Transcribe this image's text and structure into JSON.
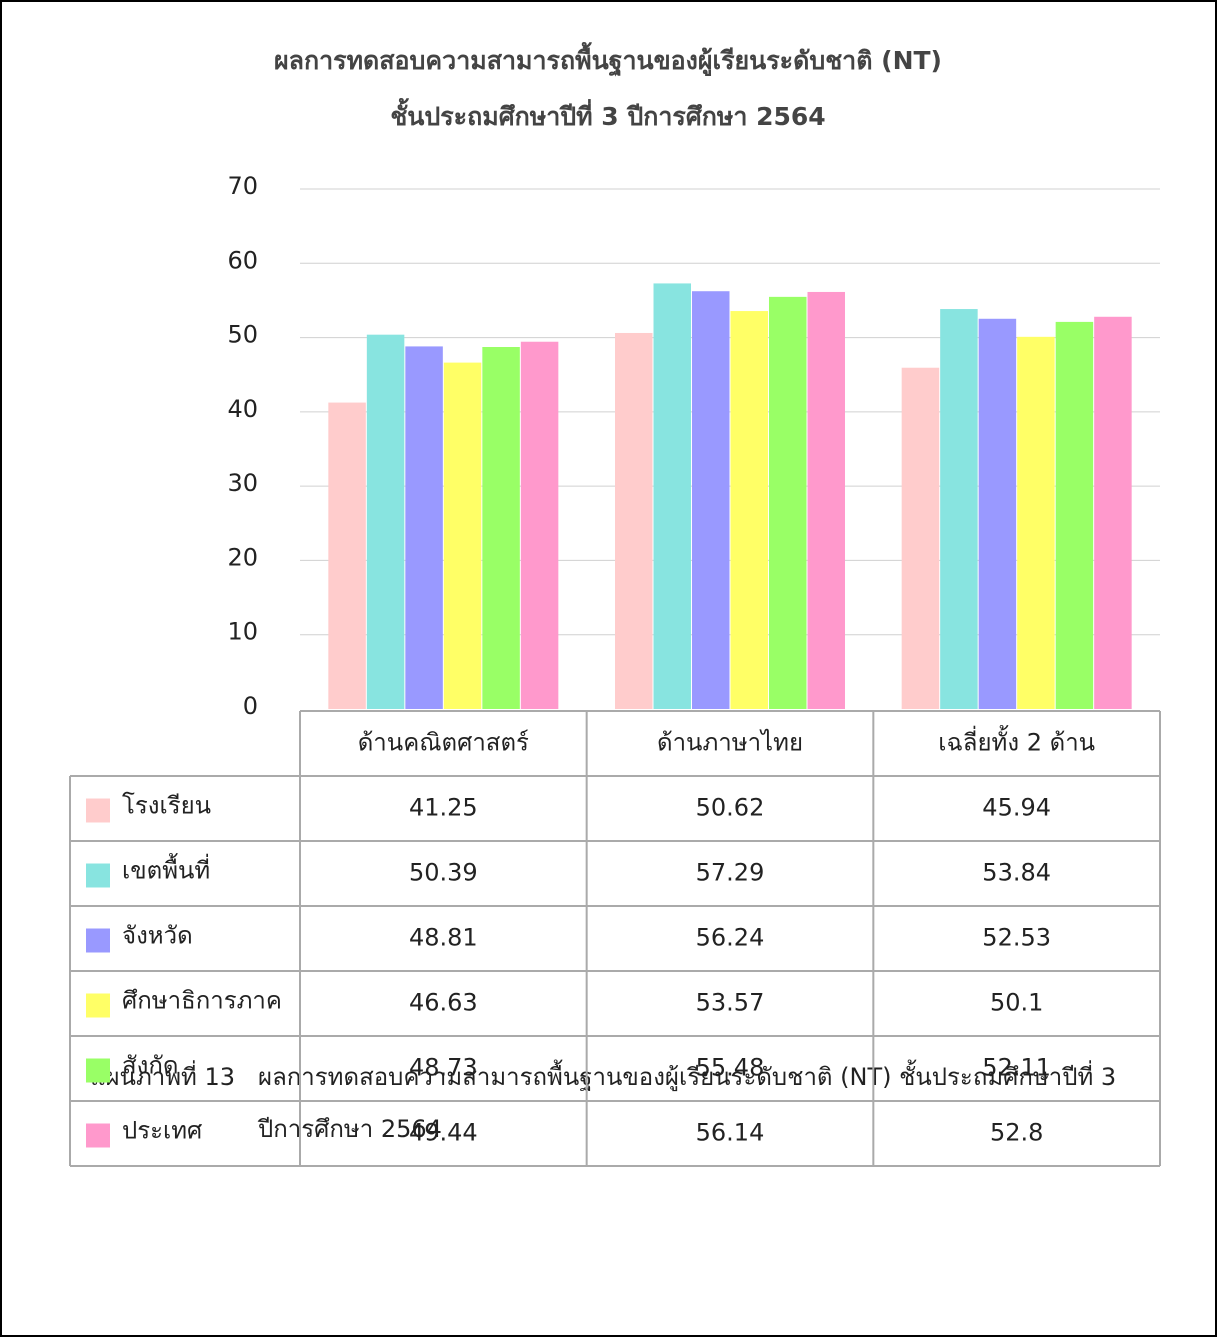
{
  "chart_data": {
    "type": "bar",
    "title": "ผลการทดสอบความสามารถพื้นฐานของผู้เรียนระดับชาติ (NT)",
    "subtitle": "ชั้นประถมศึกษาปีที่ 3 ปีการศึกษา 2564",
    "categories": [
      "ด้านคณิตศาสตร์",
      "ด้านภาษาไทย",
      "เฉลี่ยทั้ง 2 ด้าน"
    ],
    "series": [
      {
        "name": "โรงเรียน",
        "color": "#ffcccc",
        "values": [
          41.25,
          50.62,
          45.94
        ]
      },
      {
        "name": "เขตพื้นที่",
        "color": "#88e4e0",
        "values": [
          50.39,
          57.29,
          53.84
        ]
      },
      {
        "name": "จังหวัด",
        "color": "#9999ff",
        "values": [
          48.81,
          56.24,
          52.53
        ]
      },
      {
        "name": "ศึกษาธิการภาค",
        "color": "#ffff66",
        "values": [
          46.63,
          53.57,
          50.1
        ]
      },
      {
        "name": "สังกัด",
        "color": "#99ff66",
        "values": [
          48.73,
          55.48,
          52.11
        ]
      },
      {
        "name": "ประเทศ",
        "color": "#ff99cc",
        "values": [
          49.44,
          56.14,
          52.8
        ]
      }
    ],
    "ylim": [
      0,
      70
    ],
    "yticks": [
      0,
      10,
      20,
      30,
      40,
      50,
      60,
      70
    ],
    "grid": true,
    "caption": [
      "แผนภาพที่ 13",
      "ผลการทดสอบความสามารถพื้นฐานของผู้เรียนระดับชาติ (NT) ชั้นประถมศึกษาปีที่ 3",
      "ปีการศึกษา 2564"
    ]
  }
}
